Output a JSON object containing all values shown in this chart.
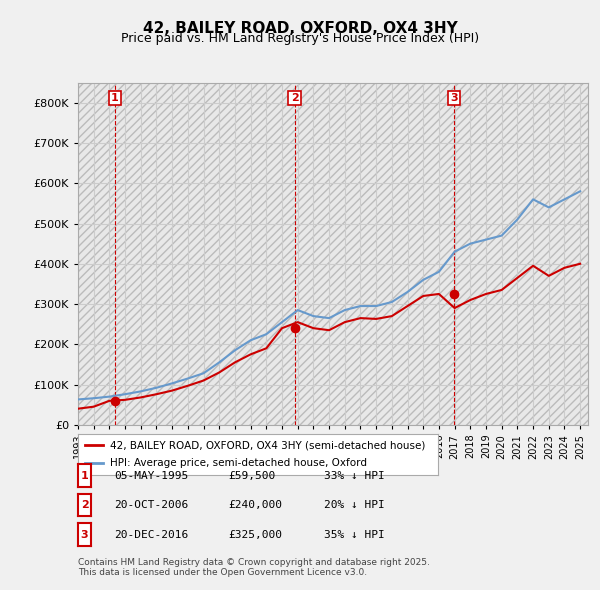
{
  "title": "42, BAILEY ROAD, OXFORD, OX4 3HY",
  "subtitle": "Price paid vs. HM Land Registry's House Price Index (HPI)",
  "ylim": [
    0,
    850000
  ],
  "yticks": [
    0,
    100000,
    200000,
    300000,
    400000,
    500000,
    600000,
    700000,
    800000
  ],
  "ytick_labels": [
    "£0",
    "£100K",
    "£200K",
    "£300K",
    "£400K",
    "£500K",
    "£600K",
    "£700K",
    "£800K"
  ],
  "xlim_start": 1993.0,
  "xlim_end": 2025.5,
  "hpi_color": "#6699cc",
  "price_color": "#cc0000",
  "background_color": "#f0f0f0",
  "plot_bg_color": "#ffffff",
  "hatch_color": "#cccccc",
  "grid_color": "#cccccc",
  "legend_label_price": "42, BAILEY ROAD, OXFORD, OX4 3HY (semi-detached house)",
  "legend_label_hpi": "HPI: Average price, semi-detached house, Oxford",
  "purchases": [
    {
      "num": 1,
      "date": "05-MAY-1995",
      "price": 59500,
      "pct": "33% ↓ HPI",
      "year": 1995.35
    },
    {
      "num": 2,
      "date": "20-OCT-2006",
      "price": 240000,
      "pct": "20% ↓ HPI",
      "year": 2006.8
    },
    {
      "num": 3,
      "date": "20-DEC-2016",
      "price": 325000,
      "pct": "35% ↓ HPI",
      "year": 2016.97
    }
  ],
  "footer": "Contains HM Land Registry data © Crown copyright and database right 2025.\nThis data is licensed under the Open Government Licence v3.0.",
  "hpi_years": [
    1993,
    1994,
    1995,
    1996,
    1997,
    1998,
    1999,
    2000,
    2001,
    2002,
    2003,
    2004,
    2005,
    2006,
    2007,
    2008,
    2009,
    2010,
    2011,
    2012,
    2013,
    2014,
    2015,
    2016,
    2017,
    2018,
    2019,
    2020,
    2021,
    2022,
    2023,
    2024,
    2025
  ],
  "hpi_values": [
    63000,
    66000,
    70000,
    76000,
    83000,
    92000,
    103000,
    115000,
    128000,
    155000,
    185000,
    210000,
    225000,
    255000,
    285000,
    270000,
    265000,
    285000,
    295000,
    295000,
    305000,
    330000,
    360000,
    380000,
    430000,
    450000,
    460000,
    470000,
    510000,
    560000,
    540000,
    560000,
    580000
  ],
  "price_years": [
    1993,
    1994,
    1995,
    1996,
    1997,
    1998,
    1999,
    2000,
    2001,
    2002,
    2003,
    2004,
    2005,
    2006,
    2007,
    2008,
    2009,
    2010,
    2011,
    2012,
    2013,
    2014,
    2015,
    2016,
    2017,
    2018,
    2019,
    2020,
    2021,
    2022,
    2023,
    2024,
    2025
  ],
  "price_values": [
    40000,
    45000,
    59500,
    62000,
    68000,
    76000,
    85000,
    97000,
    110000,
    130000,
    155000,
    175000,
    190000,
    240000,
    255000,
    240000,
    235000,
    255000,
    265000,
    263000,
    270000,
    295000,
    320000,
    325000,
    290000,
    310000,
    325000,
    335000,
    365000,
    395000,
    370000,
    390000,
    400000
  ],
  "xtick_years": [
    1993,
    1994,
    1995,
    1996,
    1997,
    1998,
    1999,
    2000,
    2001,
    2002,
    2003,
    2004,
    2005,
    2006,
    2007,
    2008,
    2009,
    2010,
    2011,
    2012,
    2013,
    2014,
    2015,
    2016,
    2017,
    2018,
    2019,
    2020,
    2021,
    2022,
    2023,
    2024,
    2025
  ]
}
